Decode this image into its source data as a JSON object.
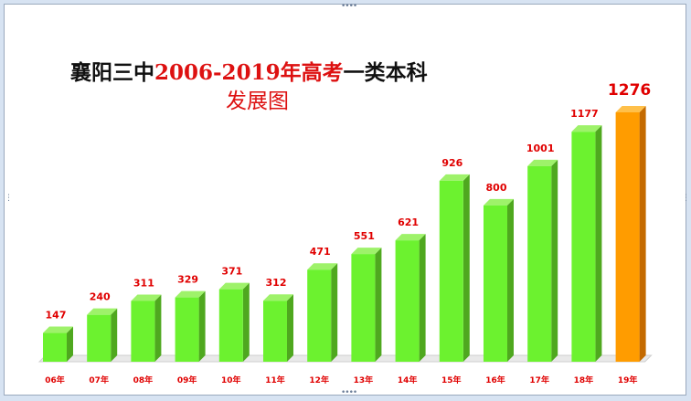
{
  "chart_data": {
    "type": "bar",
    "title_parts": [
      {
        "text": "襄阳三中",
        "color": "#111111"
      },
      {
        "text": "2006-2019",
        "color": "#dd1111"
      },
      {
        "text": "年高考",
        "color": "#dd1111"
      },
      {
        "text": "一类本科",
        "color": "#111111"
      }
    ],
    "title_line2": "发展图",
    "categories": [
      "06年",
      "07年",
      "08年",
      "09年",
      "10年",
      "11年",
      "12年",
      "13年",
      "14年",
      "15年",
      "16年",
      "17年",
      "18年",
      "19年"
    ],
    "values": [
      147,
      240,
      311,
      329,
      371,
      312,
      471,
      551,
      621,
      926,
      800,
      1001,
      1177,
      1276
    ],
    "highlight_index": 13,
    "ylim": [
      0,
      1300
    ],
    "grid": false,
    "colors": {
      "bar_front": "#6cf22f",
      "bar_side": "#4fa81f",
      "bar_top": "#9ef26a",
      "highlight_front": "#ff9c00",
      "highlight_side": "#c46a00",
      "highlight_top": "#ffc04a",
      "label": "#e00000",
      "floor": "#e9e9e9"
    }
  }
}
